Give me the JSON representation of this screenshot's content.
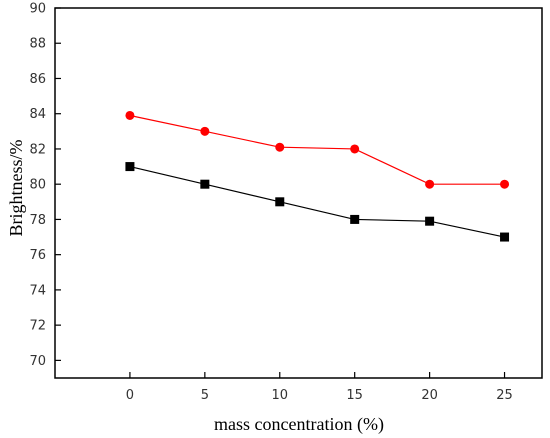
{
  "chart_data": {
    "type": "line",
    "xlabel": "mass concentration (%)",
    "ylabel": "Brightness/%",
    "x": [
      0,
      5,
      10,
      15,
      20,
      25
    ],
    "xlim": [
      -5,
      27.5
    ],
    "ylim": [
      69,
      90
    ],
    "xticks": [
      0,
      5,
      10,
      15,
      20,
      25
    ],
    "yticks": [
      70,
      72,
      74,
      76,
      78,
      80,
      82,
      84,
      86,
      88,
      90
    ],
    "grid": false,
    "legend": false,
    "series": [
      {
        "marker": "circle",
        "color": "#ff0000",
        "values": [
          83.9,
          83.0,
          82.1,
          82.0,
          80.0,
          80.0
        ]
      },
      {
        "marker": "square",
        "color": "#000000",
        "values": [
          81.0,
          80.0,
          79.0,
          78.0,
          77.9,
          77.0
        ]
      }
    ]
  }
}
